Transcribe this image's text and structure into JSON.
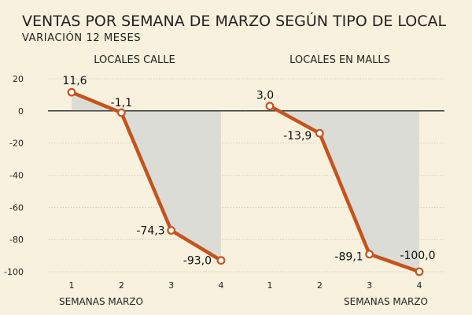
{
  "title": "VENTAS POR SEMANA DE MARZO SEGÚN TIPO DE LOCAL",
  "subtitle": "VARIACIÓN 12 MESES",
  "colors": {
    "background": "#f8f1de",
    "line": "#c5531b",
    "area": "#dcdcd6",
    "grid": "#c8c3b6",
    "zero": "#333333"
  },
  "chart_data": [
    {
      "type": "line",
      "title": "LOCALES CALLE",
      "xlabel": "SEMANAS MARZO",
      "categories": [
        "1",
        "2",
        "3",
        "4"
      ],
      "values": [
        11.6,
        -1.1,
        -74.3,
        -93.0
      ],
      "labels": [
        "11,6",
        "-1,1",
        "-74,3",
        "-93,0"
      ],
      "ylim": [
        -100,
        20
      ],
      "yticks": [
        20,
        0,
        -20,
        -40,
        -60,
        -80,
        -100
      ],
      "grid": true
    },
    {
      "type": "line",
      "title": "LOCALES EN MALLS",
      "xlabel": "SEMANAS MARZO",
      "categories": [
        "1",
        "2",
        "3",
        "4"
      ],
      "values": [
        3.0,
        -13.9,
        -89.1,
        -100.0
      ],
      "labels": [
        "3,0",
        "-13,9",
        "-89,1",
        "-100,0"
      ],
      "ylim": [
        -100,
        20
      ],
      "yticks": [
        20,
        0,
        -20,
        -40,
        -60,
        -80,
        -100
      ],
      "grid": true
    }
  ]
}
